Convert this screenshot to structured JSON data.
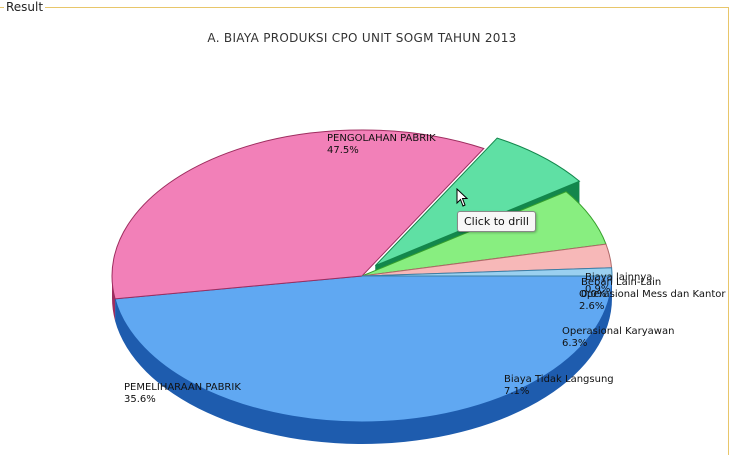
{
  "panel": {
    "legend": "Result"
  },
  "chart_data": {
    "type": "pie",
    "title": "A. BIAYA PRODUKSI CPO UNIT  SOGM TAHUN 2013",
    "slices": [
      {
        "name": "PENGOLAHAN PABRIK",
        "percent_label": "47.5%",
        "value": 47.5,
        "color": "#60a8f2",
        "dark": "#1e5cae"
      },
      {
        "name": "PEMELIHARAAN PABRIK",
        "percent_label": "35.6%",
        "value": 35.6,
        "color": "#f280b8",
        "dark": "#9e2d5f"
      },
      {
        "name": "Biaya Tidak Langsung",
        "percent_label": "7.1%",
        "value": 7.1,
        "color": "#5fe0a4",
        "dark": "#13874c"
      },
      {
        "name": "Operasional Karyawan",
        "percent_label": "6.3%",
        "value": 6.3,
        "color": "#88ee80",
        "dark": "#36a02c"
      },
      {
        "name": "Operasional Mess dan Kantor",
        "percent_label": "2.6%",
        "value": 2.6,
        "color": "#f7b8b8",
        "dark": "#b06868"
      },
      {
        "name": "Beban Lain-Lain",
        "percent_label": "0.0%",
        "value": 0.0,
        "color": "#d0d0d0",
        "dark": "#888888"
      },
      {
        "name": "Biaya lainnya",
        "percent_label": "0.9%",
        "value": 0.9,
        "color": "#9ad0f0",
        "dark": "#3a7fa8"
      }
    ],
    "exploded_slice": "Biaya Tidak Langsung"
  },
  "tooltip": {
    "text": "Click to drill"
  }
}
